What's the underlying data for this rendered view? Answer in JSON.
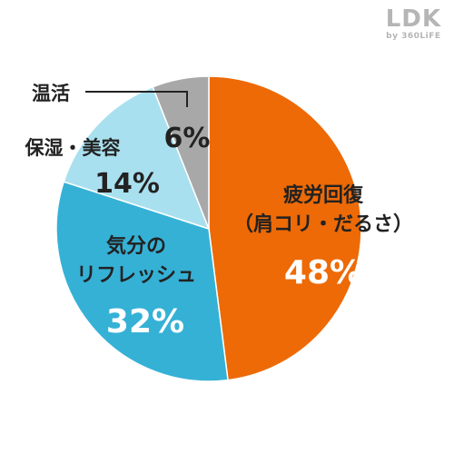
{
  "brand": {
    "logo": "LDK",
    "tagline": "by 360LiFE",
    "color": "#b5b5b5"
  },
  "chart_data": {
    "type": "pie",
    "title": "",
    "start": "12 o'clock, clockwise",
    "slices": [
      {
        "label_lines": [
          "疲労回復",
          "（肩コリ・だるさ）"
        ],
        "value": 48,
        "value_label": "48%",
        "color": "#ed6a06",
        "text_color": "#ffffff",
        "label_color": "#222222"
      },
      {
        "label_lines": [
          "気分の",
          "リフレッシュ"
        ],
        "value": 32,
        "value_label": "32%",
        "color": "#36b1d6",
        "text_color": "#ffffff",
        "label_color": "#222222"
      },
      {
        "label_lines": [
          "保湿・美容"
        ],
        "value": 14,
        "value_label": "14%",
        "color": "#a9e0ef",
        "text_color": "#222222",
        "label_color": "#222222"
      },
      {
        "label_lines": [
          "温活"
        ],
        "value": 6,
        "value_label": "6%",
        "color": "#a8a8a8",
        "text_color": "#222222",
        "label_color": "#222222",
        "callout": true
      }
    ]
  }
}
